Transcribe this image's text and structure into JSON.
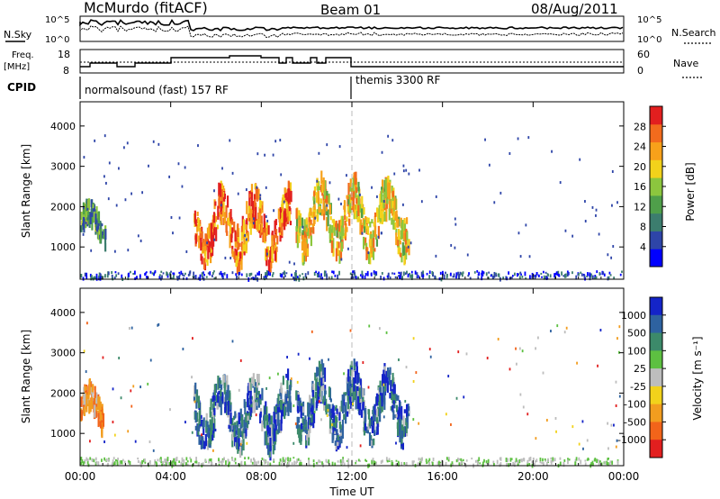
{
  "header": {
    "station": "McMurdo (fitACF)",
    "beam": "Beam 01",
    "date": "08/Aug/2011"
  },
  "top_panels": {
    "nsky_label": "N.Sky",
    "nsearch_label": "N.Search",
    "freq_label_1": "Freq.",
    "freq_label_2": "[MHz]",
    "nave_label": "Nave",
    "cpid_label": "CPID",
    "left_ticks_noise": [
      "10^5",
      "10^0"
    ],
    "right_ticks_noise": [
      "10^5",
      "10^0"
    ],
    "left_ticks_freq": [
      "18",
      "8"
    ],
    "right_ticks_nave": [
      "60",
      "0"
    ],
    "cpid_modes": [
      {
        "label": "normalsound (fast) 157 RF",
        "start_hour": 0
      },
      {
        "label": "themis 3300 RF",
        "start_hour": 12
      }
    ]
  },
  "colors": {
    "power_scale": [
      "#0000ff",
      "#2e45a8",
      "#3c7d6e",
      "#4f9f4a",
      "#8cc63e",
      "#f2d21b",
      "#f7a11a",
      "#f26b1d",
      "#e21f1f"
    ],
    "velocity_scale": [
      "#1424c8",
      "#2e62a0",
      "#3c8a6a",
      "#5dc041",
      "#bdbdbd",
      "#f2d21b",
      "#f29d1f",
      "#f2641a",
      "#e21f1f"
    ]
  },
  "chart_data": [
    {
      "type": "heatmap",
      "title": "",
      "ylabel": "Slant Range [km]",
      "xlabel": "",
      "x_ticks": [
        "00:00",
        "04:00",
        "08:00",
        "12:00",
        "16:00",
        "20:00",
        "00:00"
      ],
      "y_ticks": [
        "1000",
        "2000",
        "3000",
        "4000"
      ],
      "xlim": [
        0,
        24
      ],
      "ylim": [
        200,
        4600
      ],
      "colorbar_label": "Power [dB]",
      "colorbar_ticks": [
        "4",
        "8",
        "12",
        "16",
        "20",
        "24",
        "28"
      ],
      "colorbar_range": [
        0,
        30
      ],
      "echo_regions": [
        {
          "t_start": 0.0,
          "t_end": 1.1,
          "r_low": 1100,
          "r_high": 2000,
          "level": 0.35
        },
        {
          "t_start": 5.0,
          "t_end": 9.3,
          "r_low": 700,
          "r_high": 2300,
          "level": 0.85
        },
        {
          "t_start": 9.5,
          "t_end": 14.5,
          "r_low": 900,
          "r_high": 2500,
          "level": 0.65
        }
      ]
    },
    {
      "type": "heatmap",
      "title": "",
      "ylabel": "Slant Range [km]",
      "xlabel": "Time UT",
      "x_ticks": [
        "00:00",
        "04:00",
        "08:00",
        "12:00",
        "16:00",
        "20:00",
        "00:00"
      ],
      "y_ticks": [
        "1000",
        "2000",
        "3000",
        "4000"
      ],
      "xlim": [
        0,
        24
      ],
      "ylim": [
        200,
        4600
      ],
      "colorbar_label": "Velocity [m s⁻¹]",
      "colorbar_ticks": [
        "1000",
        "500",
        "100",
        "25",
        "-25",
        "-100",
        "-500",
        "-1000"
      ],
      "echo_regions": [
        {
          "t_start": 0.0,
          "t_end": 1.0,
          "r_low": 1100,
          "r_high": 2100,
          "velocity": -300
        },
        {
          "t_start": 5.0,
          "t_end": 9.3,
          "r_low": 700,
          "r_high": 2300,
          "velocity": 300
        },
        {
          "t_start": 9.5,
          "t_end": 14.5,
          "r_low": 900,
          "r_high": 2500,
          "velocity": 200
        }
      ]
    }
  ]
}
